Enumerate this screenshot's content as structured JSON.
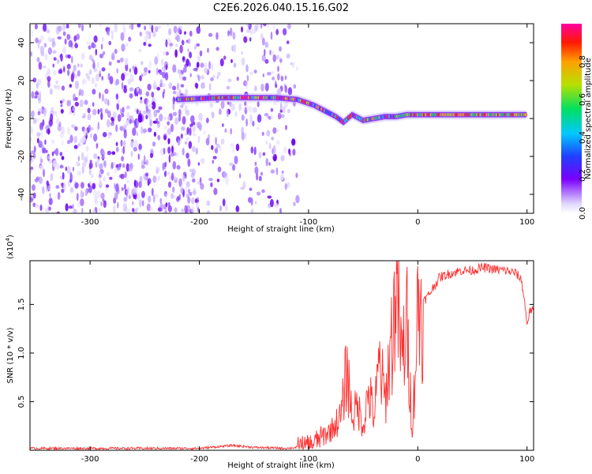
{
  "figure_title": "C2E6.2026.040.15.16.G02",
  "chart_data": [
    {
      "type": "heatmap",
      "title": "C2E6.2026.040.15.16.G02",
      "xlabel": "Height of straight line (km)",
      "ylabel": "Frequency (Hz)",
      "xlim": [
        -355,
        106
      ],
      "ylim": [
        -50,
        50
      ],
      "x_ticks": [
        -300,
        -200,
        -100,
        0,
        100
      ],
      "y_ticks": [
        -40,
        -20,
        0,
        20,
        40
      ],
      "colorbar": {
        "label": "Normalized spectral amplitude",
        "range": [
          0.0,
          1.0
        ],
        "ticks": [
          0.0,
          0.2,
          0.4,
          0.6,
          0.8
        ],
        "colors": [
          "#c8c0f0",
          "#8800ff",
          "#2244ff",
          "#00c8ff",
          "#00e060",
          "#c0e000",
          "#ffa000",
          "#ff2000",
          "#ff0090"
        ]
      },
      "ridge": {
        "description_points": [
          [
            -220,
            10
          ],
          [
            -180,
            11
          ],
          [
            -150,
            11
          ],
          [
            -130,
            11
          ],
          [
            -110,
            10
          ],
          [
            -95,
            7
          ],
          [
            -85,
            4
          ],
          [
            -75,
            1
          ],
          [
            -68,
            -2
          ],
          [
            -60,
            2
          ],
          [
            -50,
            -1
          ],
          [
            -40,
            0
          ],
          [
            -30,
            1
          ],
          [
            -20,
            1
          ],
          [
            -10,
            2
          ],
          [
            0,
            2
          ],
          [
            20,
            2
          ],
          [
            50,
            2
          ],
          [
            80,
            2
          ],
          [
            100,
            2
          ]
        ]
      },
      "noise_region_km": [
        -355,
        -110
      ],
      "grid": false
    },
    {
      "type": "line",
      "xlabel": "Height of straight line (km)",
      "ylabel": "SNR (10 * v/v)",
      "y_multiplier": "(x10",
      "y_multiplier_exp": "4",
      "y_multiplier_close": ")",
      "xlim": [
        -355,
        106
      ],
      "ylim": [
        0,
        1.95
      ],
      "x_ticks": [
        -300,
        -200,
        -100,
        0,
        100
      ],
      "y_ticks": [
        0.5,
        1.0,
        1.5
      ],
      "y_tick_labels": [
        "0.5",
        "1.0",
        "1.5"
      ],
      "series": [
        {
          "color": "#ff3030",
          "x": [
            -355,
            -300,
            -250,
            -200,
            -170,
            -150,
            -120,
            -100,
            -90,
            -80,
            -70,
            -65,
            -60,
            -55,
            -50,
            -45,
            -40,
            -35,
            -30,
            -25,
            -22,
            -20,
            -15,
            -10,
            -5,
            0,
            10,
            20,
            30,
            40,
            50,
            60,
            70,
            80,
            90,
            95,
            98,
            100,
            103,
            106
          ],
          "y": [
            0.02,
            0.02,
            0.02,
            0.02,
            0.05,
            0.03,
            0.02,
            0.04,
            0.12,
            0.2,
            0.35,
            0.85,
            0.35,
            0.45,
            0.25,
            0.6,
            0.35,
            0.9,
            0.5,
            1.05,
            1.3,
            1.85,
            0.9,
            1.3,
            0.2,
            1.45,
            1.6,
            1.78,
            1.82,
            1.85,
            1.85,
            1.88,
            1.86,
            1.85,
            1.82,
            1.75,
            1.5,
            1.3,
            1.45,
            1.42
          ]
        }
      ],
      "grid": false
    }
  ]
}
